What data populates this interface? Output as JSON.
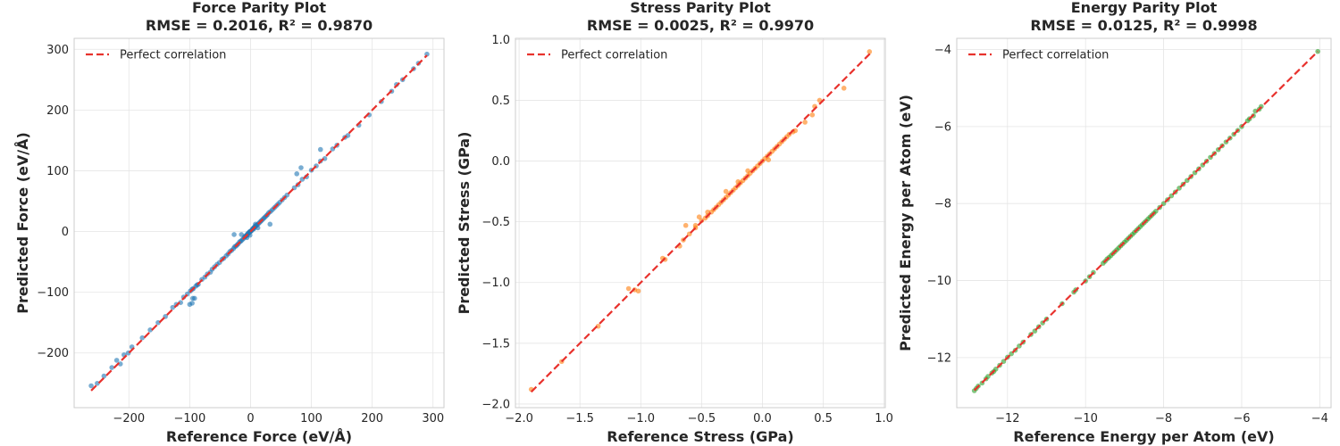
{
  "chart_data": [
    {
      "type": "scatter",
      "title": "Force Parity Plot",
      "subtitle": "RMSE = 0.2016, R² = 0.9870",
      "xlabel": "Reference Force (eV/Å)",
      "ylabel": "Predicted Force (eV/Å)",
      "xlim": [
        -290,
        318
      ],
      "ylim": [
        -290,
        318
      ],
      "xticks": [
        -200,
        -100,
        0,
        100,
        200,
        300
      ],
      "yticks": [
        -200,
        -100,
        0,
        100,
        200,
        300
      ],
      "xtick_labels": [
        "−200",
        "−100",
        "0",
        "100",
        "200",
        "300"
      ],
      "ytick_labels": [
        "−200",
        "−100",
        "0",
        "100",
        "200",
        "300"
      ],
      "grid": true,
      "legend": {
        "position": "top-left",
        "entries": [
          "Perfect correlation"
        ]
      },
      "colors": {
        "points": "#1f77b4",
        "reference_line": "#e8322d"
      },
      "reference_line": [
        -262,
        290
      ],
      "x": [
        -262,
        -252,
        -241,
        -228,
        -220,
        -214,
        -208,
        -201,
        -195,
        -178,
        -165,
        -152,
        -140,
        -128,
        -122,
        -115,
        -110,
        -104,
        -99,
        -96,
        -94,
        -90,
        -86,
        -80,
        -75,
        -71,
        -66,
        -63,
        -59,
        -55,
        -51,
        -47,
        -44,
        -40,
        -37,
        -34,
        -31,
        -28,
        -26,
        -24,
        -22,
        -20,
        -18,
        -16,
        -14,
        -12,
        -10,
        -9,
        -8,
        -7,
        -6,
        -5,
        -4,
        -3,
        -2,
        -1,
        0,
        1,
        2,
        3,
        4,
        5,
        6,
        7,
        8,
        9,
        10,
        12,
        14,
        16,
        18,
        20,
        22,
        24,
        26,
        28,
        30,
        33,
        36,
        39,
        42,
        45,
        48,
        52,
        56,
        60,
        72,
        78,
        85,
        92,
        100,
        108,
        115,
        122,
        135,
        142,
        155,
        160,
        178,
        195,
        215,
        232,
        240,
        250,
        268,
        276,
        290,
        -100,
        -96,
        -95,
        -92,
        -88,
        -27,
        -15,
        -6,
        -1,
        5,
        8,
        12,
        32,
        76,
        83,
        115
      ],
      "y": [
        -254,
        -250,
        -238,
        -224,
        -212,
        -218,
        -203,
        -200,
        -190,
        -175,
        -162,
        -150,
        -140,
        -125,
        -120,
        -117,
        -108,
        -103,
        -98,
        -95,
        -94,
        -90,
        -87,
        -79,
        -75,
        -70,
        -67,
        -62,
        -58,
        -54,
        -51,
        -46,
        -44,
        -40,
        -37,
        -33,
        -31,
        -28,
        -25,
        -24,
        -22,
        -20,
        -17,
        -16,
        -14,
        -12,
        -9,
        -9,
        -7,
        -7,
        -6,
        -4,
        -3,
        -3,
        -1,
        0,
        0,
        1,
        2,
        4,
        4,
        6,
        7,
        7,
        9,
        10,
        10,
        12,
        14,
        16,
        18,
        20,
        22,
        24,
        26,
        28,
        31,
        33,
        36,
        39,
        42,
        45,
        48,
        52,
        56,
        60,
        72,
        77,
        86,
        90,
        101,
        108,
        116,
        120,
        136,
        142,
        155,
        158,
        175,
        192,
        214,
        231,
        242,
        250,
        268,
        277,
        292,
        -120,
        -118,
        -110,
        -110,
        -88,
        -5,
        -5,
        -10,
        -6,
        4,
        12,
        6,
        12,
        95,
        105,
        135
      ]
    },
    {
      "type": "scatter",
      "title": "Stress Parity Plot",
      "subtitle": "RMSE = 0.0025, R² = 0.9970",
      "xlabel": "Reference Stress (GPa)",
      "ylabel": "Predicted Stress (GPa)",
      "xlim": [
        -2.03,
        1.01
      ],
      "ylim": [
        -2.03,
        1.01
      ],
      "xticks": [
        -2.0,
        -1.5,
        -1.0,
        -0.5,
        0.0,
        0.5,
        1.0
      ],
      "yticks": [
        -2.0,
        -1.5,
        -1.0,
        -0.5,
        0.0,
        0.5,
        1.0
      ],
      "xtick_labels": [
        "−2.0",
        "−1.5",
        "−1.0",
        "−0.5",
        "0.0",
        "0.5",
        "1.0"
      ],
      "ytick_labels": [
        "−2.0",
        "−1.5",
        "−1.0",
        "−0.5",
        "0.0",
        "0.5",
        "1.0"
      ],
      "grid": true,
      "legend": {
        "position": "top-left",
        "entries": [
          "Perfect correlation"
        ]
      },
      "colors": {
        "points": "#ff7f0e",
        "reference_line": "#e8322d"
      },
      "reference_line": [
        -1.9,
        0.9
      ],
      "x": [
        -1.9,
        -1.65,
        -1.35,
        -1.1,
        -1.05,
        -1.02,
        -0.82,
        -0.8,
        -0.68,
        -0.65,
        -0.6,
        -0.55,
        -0.5,
        -0.47,
        -0.45,
        -0.42,
        -0.4,
        -0.38,
        -0.36,
        -0.34,
        -0.32,
        -0.3,
        -0.28,
        -0.26,
        -0.24,
        -0.22,
        -0.2,
        -0.18,
        -0.16,
        -0.14,
        -0.12,
        -0.1,
        -0.08,
        -0.06,
        -0.04,
        -0.02,
        0.0,
        0.02,
        0.04,
        0.06,
        0.08,
        0.1,
        0.12,
        0.14,
        0.16,
        0.18,
        0.2,
        0.22,
        0.25,
        0.27,
        0.35,
        0.41,
        0.43,
        0.47,
        0.67,
        0.88,
        -0.63,
        -0.55,
        -0.52,
        -0.45,
        -0.3,
        -0.2,
        -0.12,
        0.05
      ],
      "y": [
        -1.88,
        -1.65,
        -1.36,
        -1.05,
        -1.06,
        -1.07,
        -0.8,
        -0.81,
        -0.7,
        -0.65,
        -0.6,
        -0.53,
        -0.49,
        -0.47,
        -0.45,
        -0.42,
        -0.4,
        -0.38,
        -0.36,
        -0.34,
        -0.32,
        -0.3,
        -0.28,
        -0.26,
        -0.24,
        -0.22,
        -0.2,
        -0.18,
        -0.16,
        -0.14,
        -0.12,
        -0.1,
        -0.08,
        -0.06,
        -0.04,
        -0.02,
        0.0,
        0.02,
        0.04,
        0.06,
        0.08,
        0.1,
        0.12,
        0.14,
        0.16,
        0.18,
        0.2,
        0.22,
        0.24,
        0.25,
        0.32,
        0.38,
        0.45,
        0.5,
        0.6,
        0.9,
        -0.53,
        -0.55,
        -0.46,
        -0.42,
        -0.25,
        -0.17,
        -0.08,
        0.01
      ]
    },
    {
      "type": "scatter",
      "title": "Energy Parity Plot",
      "subtitle": "RMSE = 0.0125, R² = 0.9998",
      "xlabel": "Reference Energy per Atom (eV)",
      "ylabel": "Predicted Energy per Atom (eV)",
      "xlim": [
        -13.3,
        -3.71
      ],
      "ylim": [
        -13.3,
        -3.71
      ],
      "xticks": [
        -12,
        -10,
        -8,
        -6,
        -4
      ],
      "yticks": [
        -12,
        -10,
        -8,
        -6,
        -4
      ],
      "xtick_labels": [
        "−12",
        "−10",
        "−8",
        "−6",
        "−4"
      ],
      "ytick_labels": [
        "−12",
        "−10",
        "−8",
        "−6",
        "−4"
      ],
      "grid": true,
      "legend": {
        "position": "top-left",
        "entries": [
          "Perfect correlation"
        ]
      },
      "colors": {
        "points": "#2ca02c",
        "reference_line": "#e8322d"
      },
      "reference_line": [
        -12.85,
        -4.05
      ],
      "x": [
        -12.85,
        -12.8,
        -12.75,
        -12.65,
        -12.55,
        -12.5,
        -12.4,
        -12.35,
        -12.3,
        -12.2,
        -12.1,
        -12.0,
        -11.9,
        -11.8,
        -11.7,
        -11.6,
        -11.4,
        -11.3,
        -11.2,
        -11.1,
        -11.0,
        -10.6,
        -10.3,
        -10.25,
        -10.0,
        -9.9,
        -9.8,
        -9.55,
        -9.5,
        -9.45,
        -9.4,
        -9.35,
        -9.3,
        -9.25,
        -9.2,
        -9.15,
        -9.1,
        -9.05,
        -9.0,
        -8.95,
        -8.9,
        -8.85,
        -8.8,
        -8.75,
        -8.7,
        -8.65,
        -8.6,
        -8.55,
        -8.5,
        -8.45,
        -8.4,
        -8.35,
        -8.3,
        -8.25,
        -8.2,
        -8.1,
        -8.0,
        -7.9,
        -7.8,
        -7.7,
        -7.6,
        -7.5,
        -7.4,
        -7.3,
        -7.2,
        -7.1,
        -7.0,
        -6.9,
        -6.8,
        -6.7,
        -6.6,
        -6.5,
        -6.4,
        -6.3,
        -6.2,
        -6.1,
        -6.0,
        -5.85,
        -5.8,
        -5.7,
        -5.65,
        -5.55,
        -5.5,
        -4.05
      ],
      "y": [
        -12.86,
        -12.8,
        -12.74,
        -12.66,
        -12.55,
        -12.49,
        -12.4,
        -12.36,
        -12.3,
        -12.2,
        -12.1,
        -11.99,
        -11.9,
        -11.81,
        -11.7,
        -11.6,
        -11.4,
        -11.31,
        -11.2,
        -11.1,
        -11.0,
        -10.6,
        -10.3,
        -10.24,
        -10.01,
        -9.9,
        -9.79,
        -9.55,
        -9.5,
        -9.44,
        -9.4,
        -9.35,
        -9.3,
        -9.25,
        -9.2,
        -9.15,
        -9.1,
        -9.05,
        -9.0,
        -8.95,
        -8.9,
        -8.85,
        -8.8,
        -8.75,
        -8.7,
        -8.65,
        -8.6,
        -8.55,
        -8.5,
        -8.45,
        -8.4,
        -8.35,
        -8.3,
        -8.25,
        -8.2,
        -8.1,
        -8.0,
        -7.9,
        -7.8,
        -7.7,
        -7.6,
        -7.5,
        -7.4,
        -7.3,
        -7.2,
        -7.1,
        -7.0,
        -6.9,
        -6.8,
        -6.7,
        -6.6,
        -6.5,
        -6.4,
        -6.3,
        -6.2,
        -6.1,
        -6.0,
        -5.85,
        -5.8,
        -5.72,
        -5.6,
        -5.55,
        -5.48,
        -4.05
      ]
    }
  ]
}
